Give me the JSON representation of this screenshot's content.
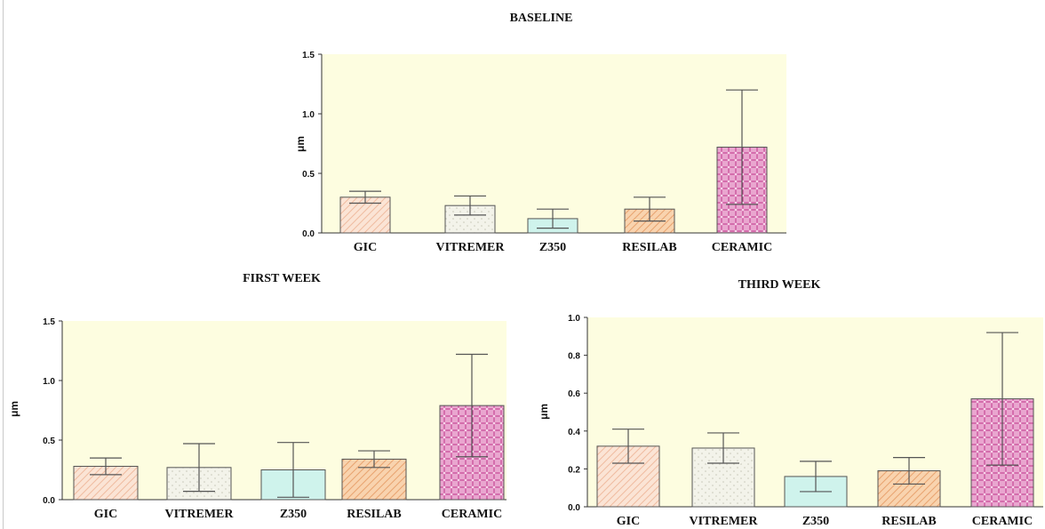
{
  "chart_data": [
    {
      "type": "bar",
      "title": "BASELINE",
      "ylabel": "μm",
      "categories": [
        "GIC",
        "VITREMER",
        "Z350",
        "RESILAB",
        "CERAMIC"
      ],
      "values": [
        0.3,
        0.23,
        0.12,
        0.2,
        0.72
      ],
      "errors": [
        0.05,
        0.08,
        0.08,
        0.1,
        0.48
      ],
      "ylim": [
        0,
        1.5
      ],
      "yticks": [
        "0.0",
        "0.5",
        "1.0",
        "1.5"
      ],
      "grid": false
    },
    {
      "type": "bar",
      "title": "FIRST WEEK",
      "ylabel": "μm",
      "categories": [
        "GIC",
        "VITREMER",
        "Z350",
        "RESILAB",
        "CERAMIC"
      ],
      "values": [
        0.28,
        0.27,
        0.25,
        0.34,
        0.79
      ],
      "errors": [
        0.07,
        0.2,
        0.23,
        0.07,
        0.43
      ],
      "ylim": [
        0,
        1.5
      ],
      "yticks": [
        "0.0",
        "0.5",
        "1.0",
        "1.5"
      ],
      "grid": false
    },
    {
      "type": "bar",
      "title": "THIRD WEEK",
      "ylabel": "μm",
      "categories": [
        "GIC",
        "VITREMER",
        "Z350",
        "RESILAB",
        "CERAMIC"
      ],
      "values": [
        0.32,
        0.31,
        0.16,
        0.19,
        0.57
      ],
      "errors": [
        0.09,
        0.08,
        0.08,
        0.07,
        0.35
      ],
      "ylim": [
        0,
        1.0
      ],
      "yticks": [
        "0.0",
        "0.2",
        "0.4",
        "0.6",
        "0.8",
        "1.0"
      ],
      "grid": false
    }
  ],
  "colors": {
    "plot_background": "#fdfde0",
    "bar_fills": [
      "#fbe4d5",
      "#f3f3ea",
      "#cff3ec",
      "#f9d3ae",
      "#e9a6cf"
    ],
    "bar_patterns": [
      "#f0bca0",
      "#c9c9b9",
      "#8fd9c7",
      "#e9a470",
      "#c0348a"
    ],
    "stroke": "#555555"
  }
}
